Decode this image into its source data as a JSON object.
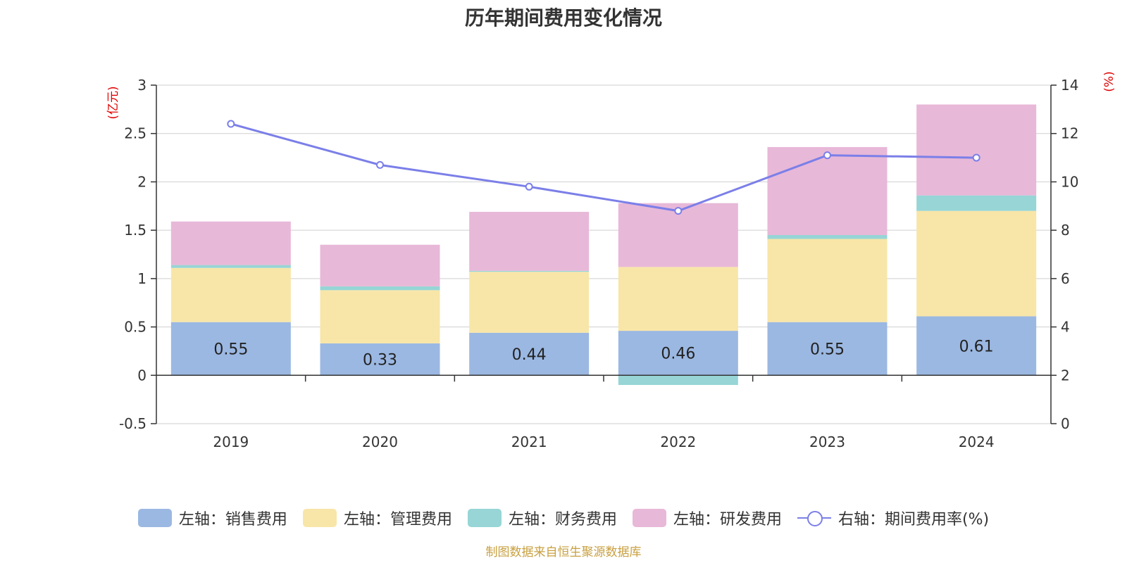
{
  "chart_data": {
    "type": "bar",
    "title": "历年期间费用变化情况",
    "categories": [
      "2019",
      "2020",
      "2021",
      "2022",
      "2023",
      "2024"
    ],
    "series": [
      {
        "name": "左轴：销售费用",
        "axis": "left",
        "color": "#9bb8e2",
        "values": [
          0.55,
          0.33,
          0.44,
          0.46,
          0.55,
          0.61
        ],
        "labels": [
          "0.55",
          "0.33",
          "0.44",
          "0.46",
          "0.55",
          "0.61"
        ]
      },
      {
        "name": "左轴：管理费用",
        "axis": "left",
        "color": "#f8e6a8",
        "values": [
          0.56,
          0.55,
          0.63,
          0.66,
          0.86,
          1.09
        ]
      },
      {
        "name": "左轴：财务费用",
        "axis": "left",
        "color": "#97d5d6",
        "values": [
          0.03,
          0.04,
          0.01,
          -0.1,
          0.04,
          0.16
        ]
      },
      {
        "name": "左轴：研发费用",
        "axis": "left",
        "color": "#e8b8d8",
        "values": [
          0.45,
          0.43,
          0.61,
          0.66,
          0.91,
          0.94
        ]
      },
      {
        "name": "右轴：期间费用率(%)",
        "axis": "right",
        "type": "line",
        "color": "#7b7fe8",
        "values": [
          12.4,
          10.7,
          9.8,
          8.8,
          11.1,
          11.0
        ]
      }
    ],
    "left_axis": {
      "unit": "(亿元)",
      "range": [
        -0.5,
        3
      ],
      "ticks": [
        "3",
        "2.5",
        "2",
        "1.5",
        "1",
        "0.5",
        "0",
        "-0.5"
      ],
      "tick_values": [
        3,
        2.5,
        2,
        1.5,
        1,
        0.5,
        0,
        -0.5
      ]
    },
    "right_axis": {
      "unit": "(%)",
      "range": [
        0,
        14
      ],
      "ticks": [
        "14",
        "12",
        "10",
        "8",
        "6",
        "4",
        "2",
        "0"
      ],
      "tick_values": [
        14,
        12,
        10,
        8,
        6,
        4,
        2,
        0
      ]
    },
    "grid": true,
    "legend_position": "bottom",
    "source": "制图数据来自恒生聚源数据库"
  }
}
